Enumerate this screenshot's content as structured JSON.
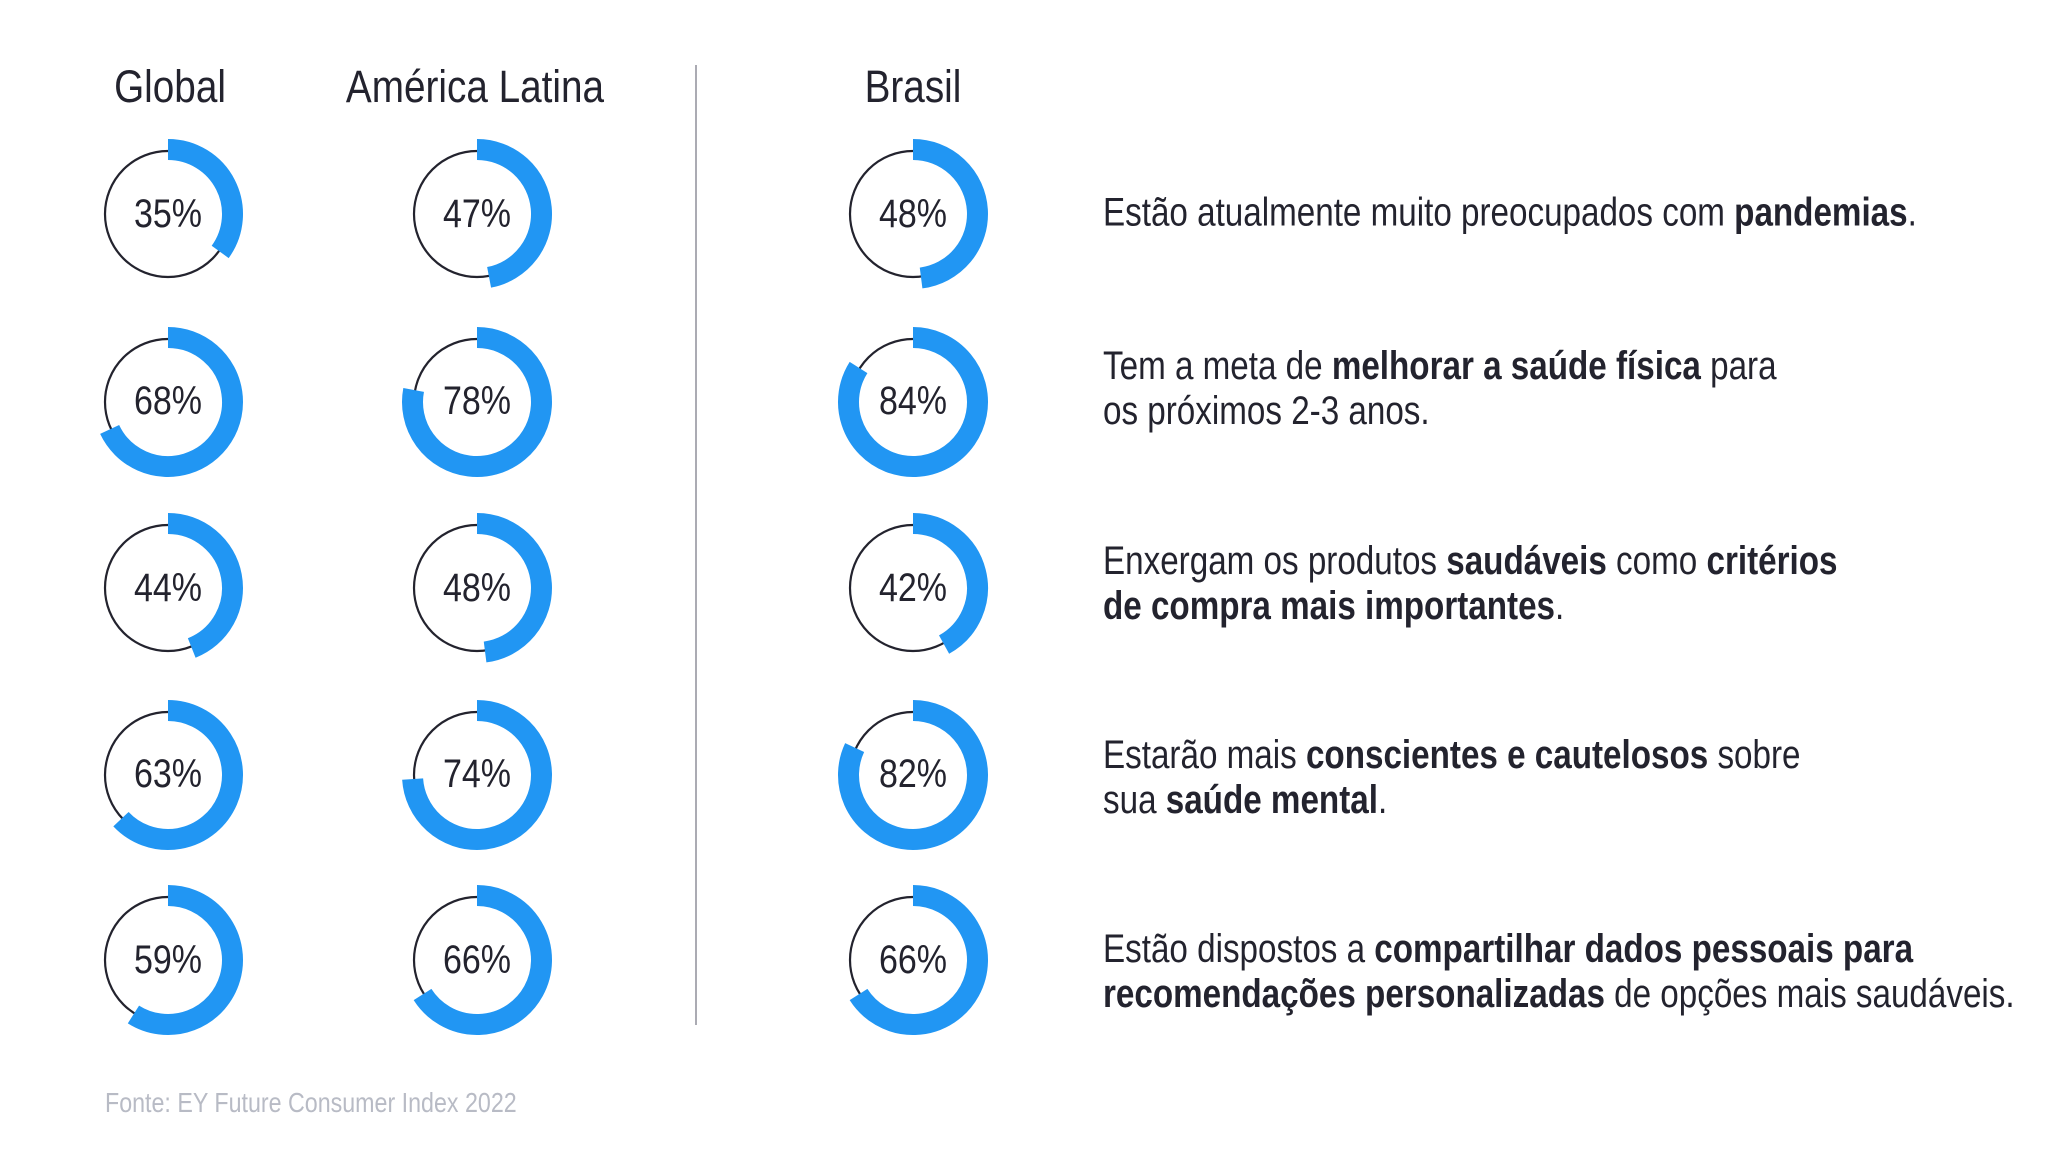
{
  "chart_data": {
    "type": "donut-grid",
    "unit": "%",
    "columns": [
      "Global",
      "América Latina",
      "Brasil"
    ],
    "accent_color": "#2196f3",
    "track_color": "#23232e",
    "rows": [
      {
        "values": [
          35,
          47,
          48
        ],
        "description_parts": [
          {
            "t": "Estão atualmente muito preocupados com "
          },
          {
            "t": "pandemias",
            "b": true
          },
          {
            "t": "."
          }
        ]
      },
      {
        "values": [
          68,
          78,
          84
        ],
        "description_parts": [
          {
            "t": "Tem a meta de "
          },
          {
            "t": "melhorar a saúde física",
            "b": true
          },
          {
            "t": " para\nos próximos 2-3 anos."
          }
        ]
      },
      {
        "values": [
          44,
          48,
          42
        ],
        "description_parts": [
          {
            "t": "Enxergam os produtos "
          },
          {
            "t": "saudáveis",
            "b": true
          },
          {
            "t": " como "
          },
          {
            "t": "critérios\nde compra mais importantes",
            "b": true
          },
          {
            "t": "."
          }
        ]
      },
      {
        "values": [
          63,
          74,
          82
        ],
        "description_parts": [
          {
            "t": "Estarão mais "
          },
          {
            "t": "conscientes e cautelosos",
            "b": true
          },
          {
            "t": " sobre\nsua "
          },
          {
            "t": "saúde mental",
            "b": true
          },
          {
            "t": "."
          }
        ]
      },
      {
        "values": [
          59,
          66,
          66
        ],
        "description_parts": [
          {
            "t": "Estão dispostos a "
          },
          {
            "t": "compartilhar dados pessoais para\nrecomendações personalizadas",
            "b": true
          },
          {
            "t": " de opções mais saudáveis."
          }
        ]
      }
    ],
    "source": "Fonte: EY Future Consumer Index 2022"
  }
}
